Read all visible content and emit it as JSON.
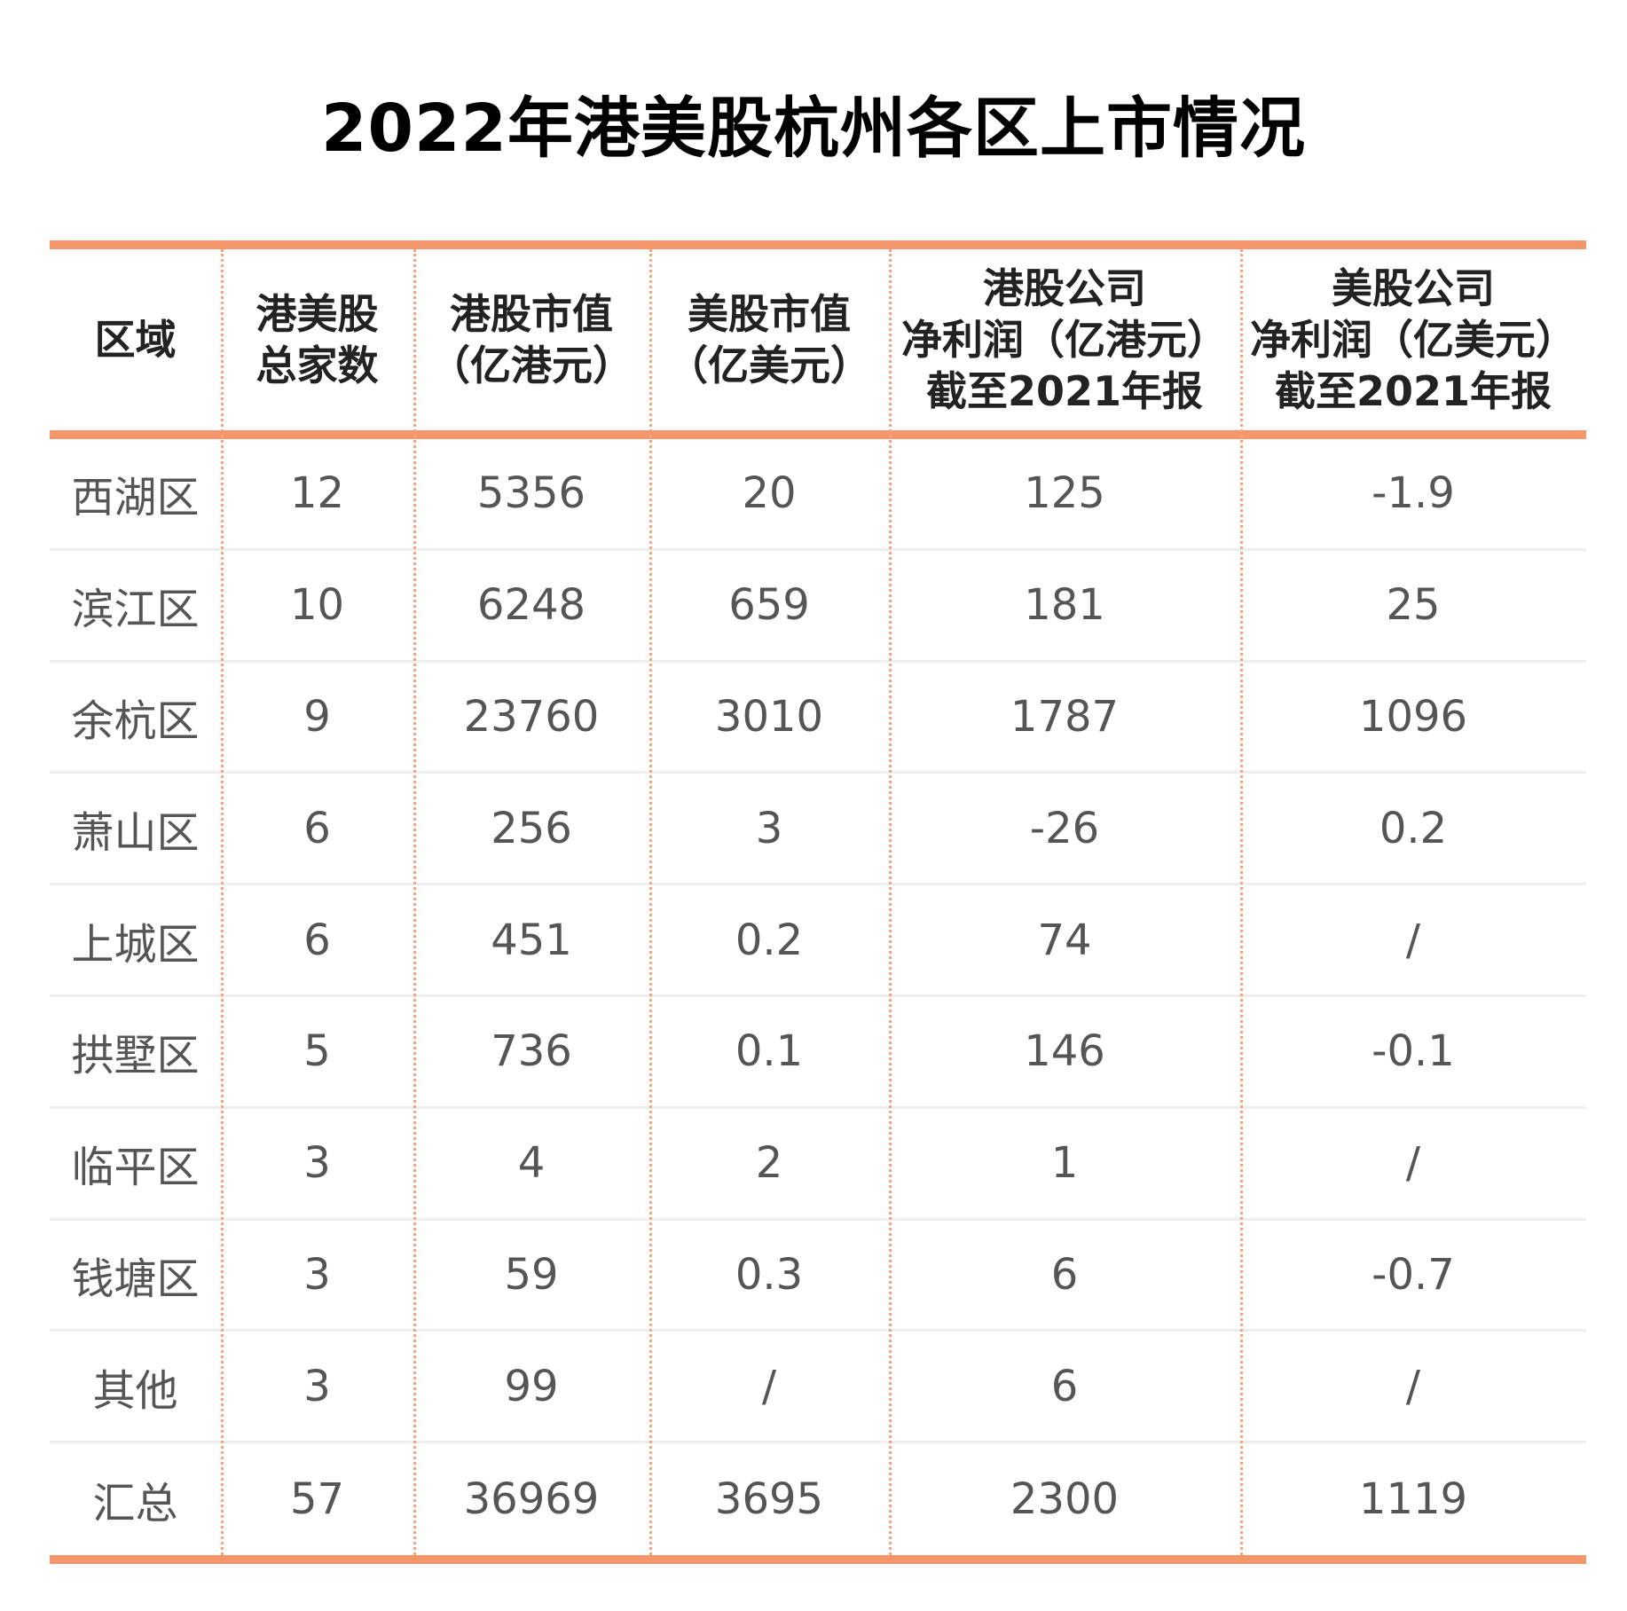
{
  "title": "2022年港美股杭州各区上市情况",
  "colors": {
    "accent": "#f4956a",
    "separator": "#f4a67e",
    "row_line": "#eeeeee",
    "title": "#000000",
    "body_text": "#555555"
  },
  "chart_data": {
    "type": "table",
    "title": "2022年港美股杭州各区上市情况",
    "columns": [
      "区域",
      "港美股\n总家数",
      "港股市值\n（亿港元）",
      "美股市值\n（亿美元）",
      "港股公司\n净利润（亿港元）\n截至2021年报",
      "美股公司\n净利润（亿美元）\n截至2021年报"
    ],
    "rows": [
      [
        "西湖区",
        "12",
        "5356",
        "20",
        "125",
        "-1.9"
      ],
      [
        "滨江区",
        "10",
        "6248",
        "659",
        "181",
        "25"
      ],
      [
        "余杭区",
        "9",
        "23760",
        "3010",
        "1787",
        "1096"
      ],
      [
        "萧山区",
        "6",
        "256",
        "3",
        "-26",
        "0.2"
      ],
      [
        "上城区",
        "6",
        "451",
        "0.2",
        "74",
        "/"
      ],
      [
        "拱墅区",
        "5",
        "736",
        "0.1",
        "146",
        "-0.1"
      ],
      [
        "临平区",
        "3",
        "4",
        "2",
        "1",
        "/"
      ],
      [
        "钱塘区",
        "3",
        "59",
        "0.3",
        "6",
        "-0.7"
      ],
      [
        "其他",
        "3",
        "99",
        "/",
        "6",
        "/"
      ],
      [
        "汇总",
        "57",
        "36969",
        "3695",
        "2300",
        "1119"
      ]
    ]
  }
}
